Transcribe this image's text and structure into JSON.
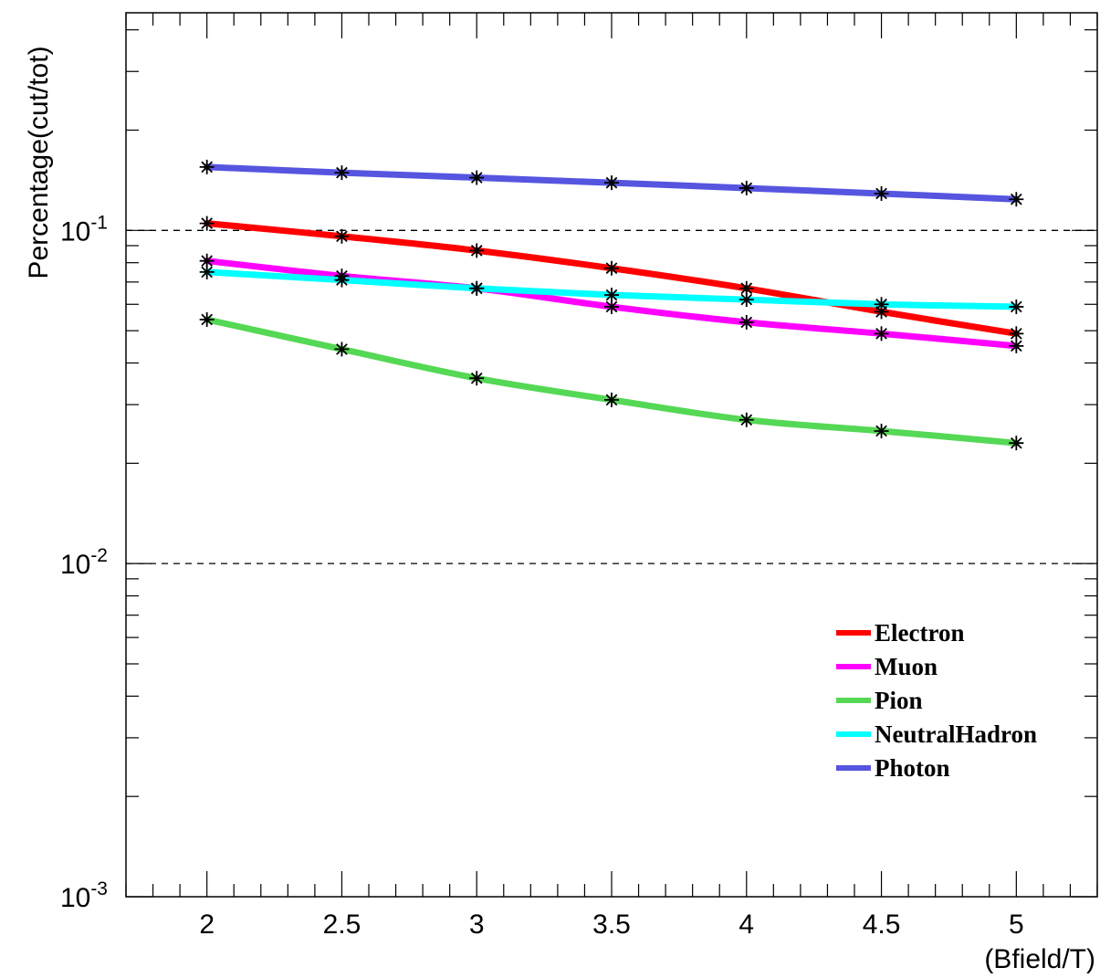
{
  "chart_data": {
    "type": "line",
    "xlabel": "(Bfield/T)",
    "ylabel": "Percentage(cut/tot)",
    "x": [
      2,
      2.5,
      3,
      3.5,
      4,
      4.5,
      5
    ],
    "xlim": [
      1.7,
      5.3
    ],
    "ylim": [
      0.001,
      0.45
    ],
    "yscale": "log",
    "x_tick_labels": [
      "2",
      "2.5",
      "3",
      "3.5",
      "4",
      "4.5",
      "5"
    ],
    "y_tick_labels": [
      {
        "base": "10",
        "exp": "-3",
        "value": 0.001
      },
      {
        "base": "10",
        "exp": "-2",
        "value": 0.01
      },
      {
        "base": "10",
        "exp": "-1",
        "value": 0.1
      }
    ],
    "grid": "horizontal dashed at decades",
    "legend_position": "bottom-right",
    "marker": "asterisk",
    "series": [
      {
        "name": "Electron",
        "color": "#ff0000",
        "values": [
          0.105,
          0.096,
          0.087,
          0.077,
          0.067,
          0.057,
          0.049
        ]
      },
      {
        "name": "Muon",
        "color": "#ff00ff",
        "values": [
          0.081,
          0.073,
          0.067,
          0.059,
          0.053,
          0.049,
          0.045
        ]
      },
      {
        "name": "Pion",
        "color": "#55d855",
        "values": [
          0.054,
          0.044,
          0.036,
          0.031,
          0.027,
          0.025,
          0.023
        ]
      },
      {
        "name": "NeutralHadron",
        "color": "#00ffff",
        "values": [
          0.075,
          0.071,
          0.067,
          0.064,
          0.062,
          0.06,
          0.059
        ]
      },
      {
        "name": "Photon",
        "color": "#5555e0",
        "values": [
          0.155,
          0.149,
          0.144,
          0.139,
          0.134,
          0.129,
          0.124
        ]
      }
    ]
  }
}
